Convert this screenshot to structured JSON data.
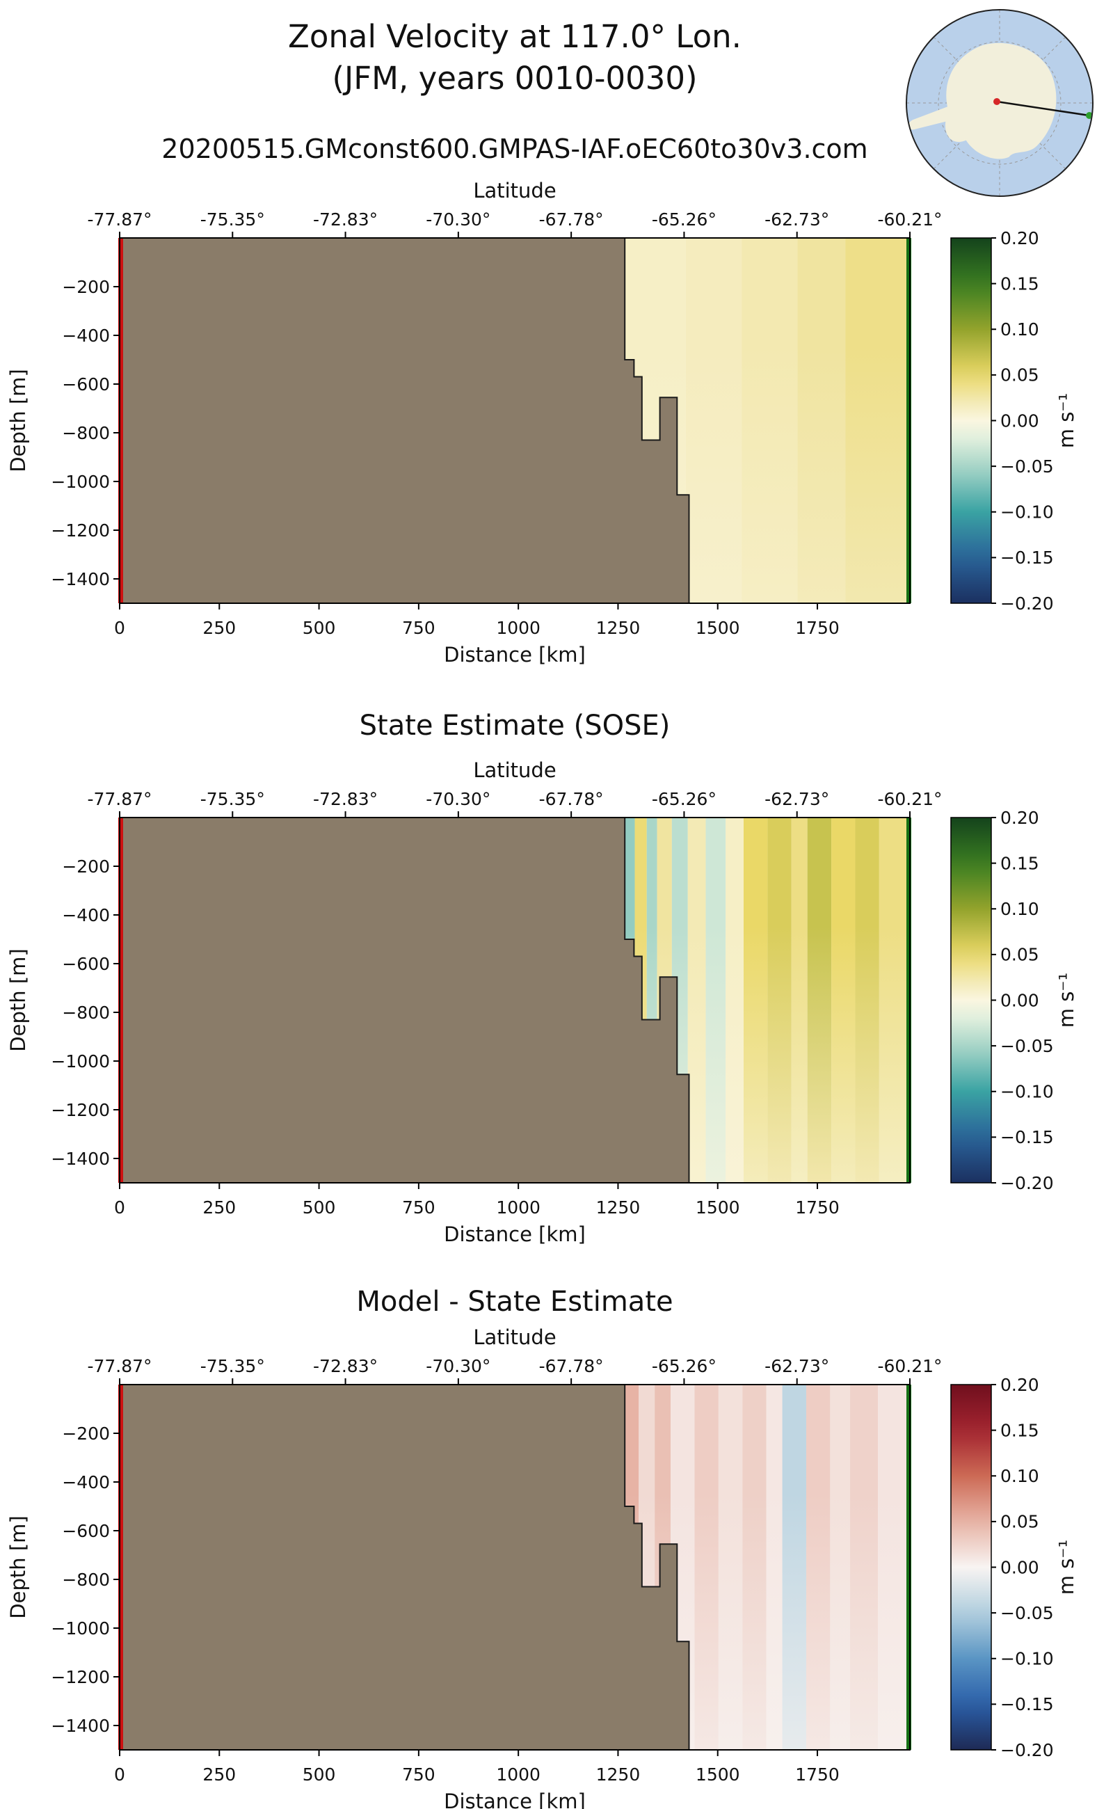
{
  "header": {
    "title_line1": "Zonal Velocity at 117.0° Lon.",
    "title_line2": "(JFM, years 0010-0030)",
    "subtitle": "20200515.GMconst600.GMPAS-IAF.oEC60to30v3.com"
  },
  "axes": {
    "top_label": "Latitude",
    "latitude_tick_labels": [
      "-77.87°",
      "-75.35°",
      "-72.83°",
      "-70.30°",
      "-67.78°",
      "-65.26°",
      "-62.73°",
      "-60.21°"
    ],
    "bottom_label": "Distance [km]",
    "distance_tick_values": [
      0,
      250,
      500,
      750,
      1000,
      1250,
      1500,
      1750
    ],
    "x_max_km": 1982,
    "left_label": "Depth [m]",
    "depth_tick_values": [
      200,
      400,
      600,
      800,
      1000,
      1200,
      1400
    ],
    "depth_tick_labels": [
      "−200",
      "−400",
      "−600",
      "−800",
      "−1000",
      "−1200",
      "−1400"
    ],
    "depth_max_m": 1500
  },
  "colorbar": {
    "label": "m s⁻¹",
    "tick_values": [
      0.2,
      0.15,
      0.1,
      0.05,
      0.0,
      -0.05,
      -0.1,
      -0.15,
      -0.2
    ],
    "tick_labels": [
      "0.20",
      "0.15",
      "0.10",
      "0.05",
      "0.00",
      "−0.05",
      "−0.10",
      "−0.15",
      "−0.20"
    ],
    "vmin": -0.2,
    "vmax": 0.2
  },
  "colors": {
    "land": "#8a7c69",
    "coastline": "#1a1a1a",
    "left_marker_line": "#cc1111",
    "right_marker_line": "#157015",
    "frame": "#000000",
    "background": "#ffffff"
  },
  "colormaps": {
    "delta": [
      [
        -0.2,
        "#1b3060"
      ],
      [
        -0.15,
        "#2a6399"
      ],
      [
        -0.1,
        "#3aa3a3"
      ],
      [
        -0.05,
        "#a9d6c8"
      ],
      [
        -0.02,
        "#e0efdd"
      ],
      [
        0.0,
        "#faf6e0"
      ],
      [
        0.03,
        "#f0e4a0"
      ],
      [
        0.05,
        "#ead867"
      ],
      [
        0.1,
        "#93a32c"
      ],
      [
        0.15,
        "#3a7d21"
      ],
      [
        0.2,
        "#14431c"
      ]
    ],
    "balance": [
      [
        -0.2,
        "#1e2a55"
      ],
      [
        -0.15,
        "#2a5fa8"
      ],
      [
        -0.1,
        "#5a95c4"
      ],
      [
        -0.05,
        "#b1cede"
      ],
      [
        0.0,
        "#f8f4f2"
      ],
      [
        0.05,
        "#e7b3a5"
      ],
      [
        0.1,
        "#cc6a55"
      ],
      [
        0.15,
        "#a32430"
      ],
      [
        0.2,
        "#700f1d"
      ]
    ]
  },
  "land_profile_km_m": [
    [
      0,
      0
    ],
    [
      1267,
      0
    ],
    [
      1267,
      500
    ],
    [
      1290,
      500
    ],
    [
      1290,
      570
    ],
    [
      1310,
      570
    ],
    [
      1310,
      830
    ],
    [
      1355,
      830
    ],
    [
      1355,
      655
    ],
    [
      1398,
      655
    ],
    [
      1398,
      1055
    ],
    [
      1428,
      1055
    ],
    [
      1428,
      1500
    ],
    [
      0,
      1500
    ]
  ],
  "coastline_km_m": [
    [
      1267,
      0
    ],
    [
      1267,
      500
    ],
    [
      1290,
      500
    ],
    [
      1290,
      570
    ],
    [
      1310,
      570
    ],
    [
      1310,
      830
    ],
    [
      1355,
      830
    ],
    [
      1355,
      655
    ],
    [
      1398,
      655
    ],
    [
      1398,
      1055
    ],
    [
      1428,
      1055
    ],
    [
      1428,
      1500
    ]
  ],
  "inset_map": {
    "ocean_color": "#b9d0ea",
    "land_color": "#f2efdb",
    "graticule_color": "#999999",
    "outline_color": "#222222",
    "section_line_color": "#111111",
    "start_marker_color": "#d62728",
    "end_marker_color": "#2ca02c"
  },
  "chart_data": [
    {
      "type": "heatmap",
      "title": "",
      "colormap": "delta",
      "units": "m s⁻¹",
      "xlabel": "Distance [km]",
      "ylabel": "Depth [m]",
      "top_axis_label": "Latitude",
      "colorbar_range": [
        -0.2,
        0.2
      ],
      "depth_fade": 0.6,
      "bands": [
        [
          1267,
          1420,
          0.012
        ],
        [
          1420,
          1560,
          0.016
        ],
        [
          1560,
          1700,
          0.022
        ],
        [
          1700,
          1820,
          0.03
        ],
        [
          1820,
          1982,
          0.038
        ]
      ]
    },
    {
      "type": "heatmap",
      "title": "State Estimate (SOSE)",
      "colormap": "delta",
      "units": "m s⁻¹",
      "xlabel": "Distance [km]",
      "ylabel": "Depth [m]",
      "top_axis_label": "Latitude",
      "colorbar_range": [
        -0.2,
        0.2
      ],
      "depth_fade": 0.35,
      "bands": [
        [
          1267,
          1292,
          -0.06
        ],
        [
          1292,
          1322,
          0.045
        ],
        [
          1322,
          1348,
          -0.05
        ],
        [
          1348,
          1385,
          0.03
        ],
        [
          1385,
          1425,
          -0.04
        ],
        [
          1425,
          1470,
          0.02
        ],
        [
          1470,
          1520,
          -0.03
        ],
        [
          1520,
          1565,
          0.012
        ],
        [
          1565,
          1625,
          0.05
        ],
        [
          1625,
          1685,
          0.06
        ],
        [
          1685,
          1725,
          0.04
        ],
        [
          1725,
          1785,
          0.07
        ],
        [
          1785,
          1845,
          0.05
        ],
        [
          1845,
          1905,
          0.06
        ],
        [
          1905,
          1982,
          0.04
        ]
      ]
    },
    {
      "type": "heatmap",
      "title": "Model - State Estimate",
      "colormap": "balance",
      "units": "m s⁻¹",
      "xlabel": "Distance [km]",
      "ylabel": "Depth [m]",
      "top_axis_label": "Latitude",
      "colorbar_range": [
        -0.2,
        0.2
      ],
      "depth_fade": 0.3,
      "bands": [
        [
          1267,
          1302,
          0.05
        ],
        [
          1302,
          1342,
          0.02
        ],
        [
          1342,
          1382,
          0.04
        ],
        [
          1382,
          1442,
          0.012
        ],
        [
          1442,
          1502,
          0.03
        ],
        [
          1502,
          1562,
          0.015
        ],
        [
          1562,
          1622,
          0.028
        ],
        [
          1622,
          1662,
          0.01
        ],
        [
          1662,
          1722,
          -0.04
        ],
        [
          1722,
          1782,
          0.03
        ],
        [
          1782,
          1832,
          0.015
        ],
        [
          1832,
          1902,
          0.026
        ],
        [
          1902,
          1982,
          0.012
        ]
      ]
    }
  ]
}
